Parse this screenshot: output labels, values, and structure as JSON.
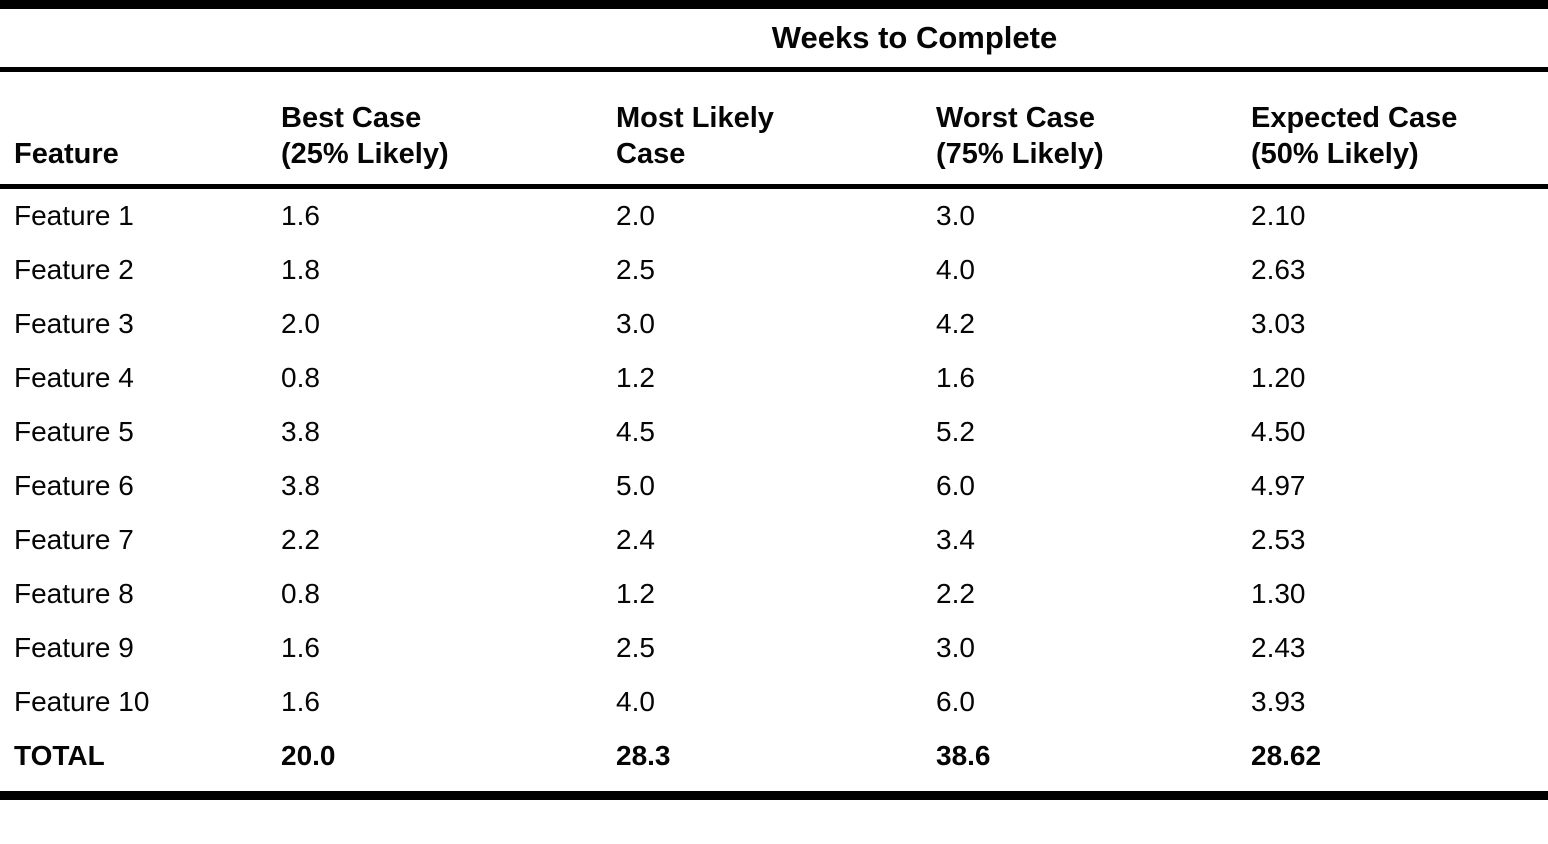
{
  "table": {
    "title": "Weeks to Complete",
    "columns": [
      {
        "label": "Feature"
      },
      {
        "label": "Best Case\n(25% Likely)"
      },
      {
        "label": "Most Likely\nCase"
      },
      {
        "label": "Worst Case\n(75% Likely)"
      },
      {
        "label": "Expected Case\n(50% Likely)"
      }
    ],
    "rows": [
      {
        "feature": "Feature 1",
        "best": "1.6",
        "most_likely": "2.0",
        "worst": "3.0",
        "expected": "2.10"
      },
      {
        "feature": "Feature 2",
        "best": "1.8",
        "most_likely": "2.5",
        "worst": "4.0",
        "expected": "2.63"
      },
      {
        "feature": "Feature 3",
        "best": "2.0",
        "most_likely": "3.0",
        "worst": "4.2",
        "expected": "3.03"
      },
      {
        "feature": "Feature 4",
        "best": "0.8",
        "most_likely": "1.2",
        "worst": "1.6",
        "expected": "1.20"
      },
      {
        "feature": "Feature 5",
        "best": "3.8",
        "most_likely": "4.5",
        "worst": "5.2",
        "expected": "4.50"
      },
      {
        "feature": "Feature 6",
        "best": "3.8",
        "most_likely": "5.0",
        "worst": "6.0",
        "expected": "4.97"
      },
      {
        "feature": "Feature 7",
        "best": "2.2",
        "most_likely": "2.4",
        "worst": "3.4",
        "expected": "2.53"
      },
      {
        "feature": "Feature 8",
        "best": "0.8",
        "most_likely": "1.2",
        "worst": "2.2",
        "expected": "1.30"
      },
      {
        "feature": "Feature 9",
        "best": "1.6",
        "most_likely": "2.5",
        "worst": "3.0",
        "expected": "2.43"
      },
      {
        "feature": "Feature 10",
        "best": "1.6",
        "most_likely": "4.0",
        "worst": "6.0",
        "expected": "3.93"
      }
    ],
    "total_row": {
      "feature": "TOTAL",
      "best": "20.0",
      "most_likely": "28.3",
      "worst": "38.6",
      "expected": "28.62"
    }
  },
  "colors": {
    "text": "#050505",
    "background": "#ffffff",
    "rule": "#000000"
  }
}
